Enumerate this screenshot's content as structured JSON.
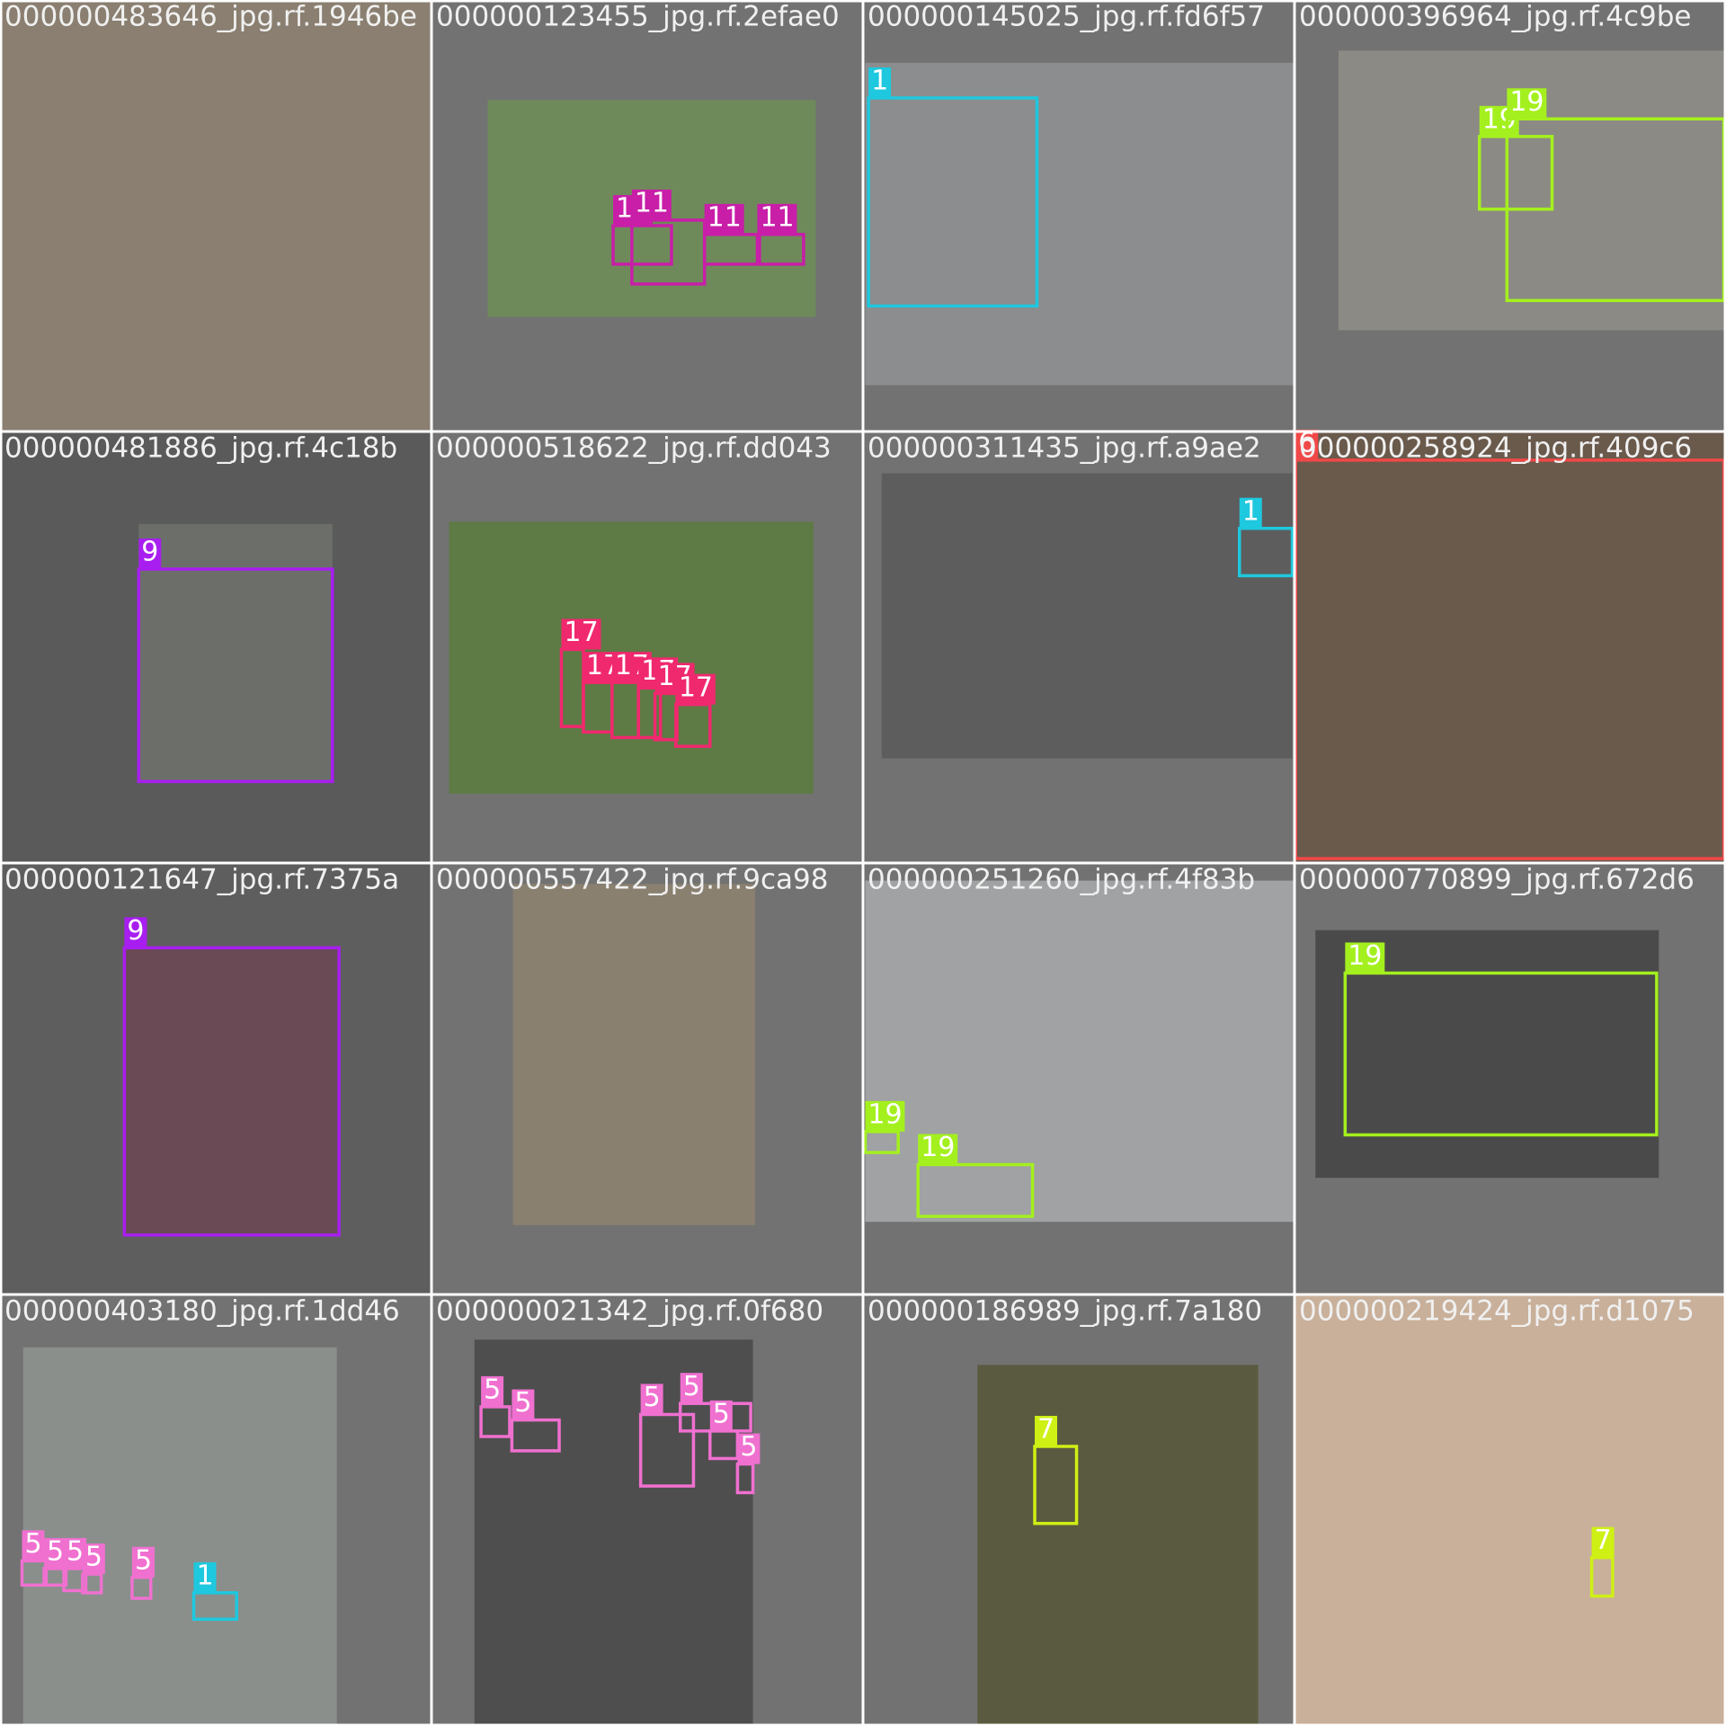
{
  "cells": [
    {
      "filename": "000000483646_jpg.rf.1946be",
      "labels": []
    },
    {
      "filename": "000000123455_jpg.rf.2efae0",
      "labels": [
        11,
        11,
        11,
        11
      ]
    },
    {
      "filename": "000000145025_jpg.rf.fd6f57",
      "labels": [
        1
      ]
    },
    {
      "filename": "000000396964_jpg.rf.4c9be",
      "labels": [
        19,
        19
      ]
    },
    {
      "filename": "000000481886_jpg.rf.4c18b",
      "labels": [
        9
      ]
    },
    {
      "filename": "000000518622_jpg.rf.dd043",
      "labels": [
        17,
        17,
        17,
        17,
        17,
        17
      ]
    },
    {
      "filename": "000000311435_jpg.rf.a9ae2",
      "labels": [
        1
      ]
    },
    {
      "filename": "000000258924_jpg.rf.409c6",
      "labels": [
        6
      ]
    },
    {
      "filename": "000000121647_jpg.rf.7375a",
      "labels": [
        9
      ]
    },
    {
      "filename": "000000557422_jpg.rf.9ca98",
      "labels": []
    },
    {
      "filename": "000000251260_jpg.rf.4f83b",
      "labels": [
        19,
        19
      ]
    },
    {
      "filename": "000000770899_jpg.rf.672d6",
      "labels": [
        19
      ]
    },
    {
      "filename": "000000403180_jpg.rf.1dd46",
      "labels": [
        5,
        5,
        5,
        5,
        5,
        1
      ]
    },
    {
      "filename": "000000021342_jpg.rf.0f680",
      "labels": [
        5,
        5,
        5,
        5,
        5,
        5
      ]
    },
    {
      "filename": "000000186989_jpg.rf.7a180",
      "labels": [
        7
      ]
    },
    {
      "filename": "000000219424_jpg.rf.d1075",
      "labels": [
        7
      ]
    }
  ]
}
